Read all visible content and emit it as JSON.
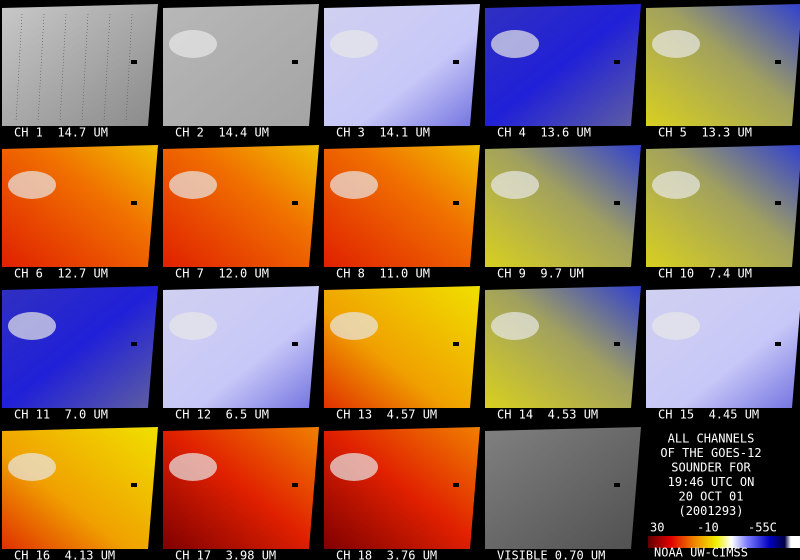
{
  "panels": [
    "CH 1  14.7 UM",
    "CH 2  14.4 UM",
    "CH 3  14.1 UM",
    "CH 4  13.6 UM",
    "CH 5  13.3 UM",
    "CH 6  12.7 UM",
    "CH 7  12.0 UM",
    "CH 8  11.0 UM",
    "CH 9  9.7 UM",
    "CH 10  7.4 UM",
    "CH 11  7.0 UM",
    "CH 12  6.5 UM",
    "CH 13  4.57 UM",
    "CH 14  4.53 UM",
    "CH 15  4.45 UM",
    "CH 16  4.13 UM",
    "CH 17  3.98 UM",
    "CH 18  3.76 UM",
    "VISIBLE 0.70 UM"
  ],
  "info": [
    "ALL CHANNELS",
    "OF THE GOES-12",
    "SOUNDER FOR",
    "19:46 UTC ON",
    "20 OCT 01",
    "(2001293)"
  ],
  "colorbar_labels": [
    "30",
    "-10",
    "-55C"
  ],
  "footer": "NOAA UW-CIMSS"
}
